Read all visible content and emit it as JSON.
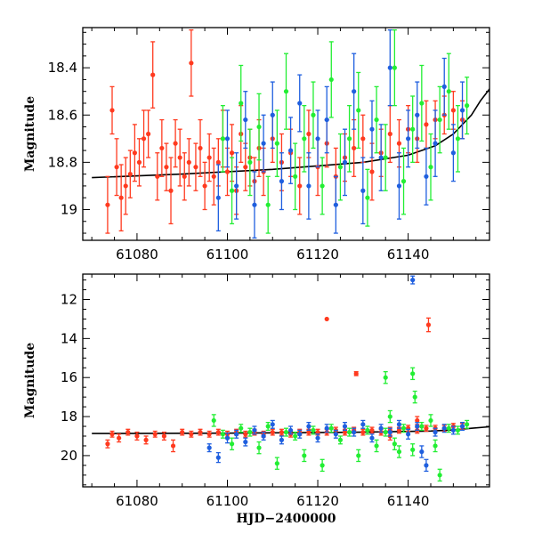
{
  "colors": {
    "red": "#ff3a1f",
    "blue": "#1f5fdf",
    "green": "#22ee33",
    "model": "#000000"
  },
  "chart_data": [
    {
      "type": "scatter",
      "panel": "top",
      "xlabel": "",
      "ylabel": "Magnitude",
      "xlim": [
        61068,
        61158
      ],
      "ylim": [
        19.13,
        18.23
      ],
      "y_inverted": true,
      "xticks": [
        61080,
        61100,
        61120,
        61140
      ],
      "xtick_labels": [
        "61080",
        "61100",
        "61120",
        "61140"
      ],
      "yticks": [
        18.4,
        18.6,
        18.8,
        19.0
      ],
      "ytick_labels": [
        "18.4",
        "18.6",
        "18.8",
        "19"
      ],
      "series": [
        {
          "name": "red",
          "color": "#ff3a1f",
          "x": [
            61073.5,
            61074.5,
            61075.5,
            61076.5,
            61077.5,
            61078.5,
            61079.5,
            61080.5,
            61081.5,
            61082.5,
            61083.5,
            61084.5,
            61085.5,
            61086.5,
            61087.5,
            61088.5,
            61089.5,
            61090.5,
            61091.5,
            61092,
            61093,
            61094,
            61095,
            61096,
            61097,
            61098,
            61099,
            61100,
            61101,
            61102,
            61103,
            61104,
            61105,
            61106,
            61107,
            61108,
            61110,
            61112,
            61114,
            61116,
            61118,
            61120,
            61122,
            61124,
            61126,
            61128,
            61130,
            61132,
            61134,
            61136,
            61138,
            61140,
            61142,
            61144,
            61146,
            61148,
            61150,
            61152
          ],
          "y": [
            18.98,
            18.58,
            18.82,
            18.95,
            18.9,
            18.85,
            18.76,
            18.8,
            18.7,
            18.68,
            18.43,
            18.86,
            18.74,
            18.82,
            18.92,
            18.72,
            18.78,
            18.86,
            18.8,
            18.38,
            18.82,
            18.74,
            18.9,
            18.78,
            18.86,
            18.8,
            18.7,
            18.84,
            18.76,
            18.92,
            18.68,
            18.82,
            18.78,
            18.88,
            18.74,
            18.84,
            18.7,
            18.8,
            18.76,
            18.9,
            18.68,
            18.82,
            18.72,
            18.86,
            18.78,
            18.74,
            18.7,
            18.84,
            18.76,
            18.68,
            18.72,
            18.66,
            18.7,
            18.64,
            18.62,
            18.6,
            18.58,
            18.62
          ],
          "err": [
            0.12,
            0.1,
            0.12,
            0.14,
            0.12,
            0.1,
            0.12,
            0.1,
            0.12,
            0.1,
            0.14,
            0.1,
            0.12,
            0.1,
            0.14,
            0.1,
            0.12,
            0.1,
            0.1,
            0.14,
            0.1,
            0.12,
            0.1,
            0.1,
            0.12,
            0.1,
            0.12,
            0.1,
            0.12,
            0.1,
            0.12,
            0.1,
            0.12,
            0.1,
            0.12,
            0.1,
            0.1,
            0.12,
            0.1,
            0.12,
            0.1,
            0.12,
            0.1,
            0.12,
            0.1,
            0.12,
            0.1,
            0.12,
            0.1,
            0.12,
            0.1,
            0.1,
            0.1,
            0.1,
            0.08,
            0.08,
            0.08,
            0.08
          ]
        },
        {
          "name": "blue",
          "color": "#1f5fdf",
          "x": [
            61098,
            61100,
            61102,
            61104,
            61106,
            61108,
            61110,
            61112,
            61114,
            61116,
            61118,
            61120,
            61122,
            61124,
            61126,
            61128,
            61130,
            61132,
            61134,
            61136,
            61138,
            61140,
            61142,
            61144,
            61146,
            61148,
            61150,
            61152
          ],
          "y": [
            18.95,
            18.7,
            18.9,
            18.62,
            18.98,
            18.72,
            18.6,
            18.88,
            18.75,
            18.55,
            18.9,
            18.7,
            18.62,
            18.98,
            18.8,
            18.5,
            18.92,
            18.66,
            18.78,
            18.4,
            18.9,
            18.7,
            18.6,
            18.86,
            18.72,
            18.48,
            18.76,
            18.58
          ],
          "err": [
            0.14,
            0.12,
            0.14,
            0.12,
            0.14,
            0.12,
            0.14,
            0.12,
            0.14,
            0.12,
            0.14,
            0.12,
            0.14,
            0.12,
            0.14,
            0.16,
            0.14,
            0.12,
            0.14,
            0.16,
            0.14,
            0.12,
            0.14,
            0.12,
            0.14,
            0.12,
            0.12,
            0.12
          ]
        },
        {
          "name": "green",
          "color": "#22ee33",
          "x": [
            61099,
            61101,
            61103,
            61105,
            61107,
            61109,
            61111,
            61113,
            61115,
            61117,
            61119,
            61121,
            61123,
            61125,
            61127,
            61129,
            61131,
            61133,
            61135,
            61137,
            61139,
            61141,
            61143,
            61145,
            61147,
            61149,
            61151,
            61153
          ],
          "y": [
            18.7,
            18.92,
            18.55,
            18.8,
            18.65,
            18.98,
            18.72,
            18.5,
            18.86,
            18.7,
            18.6,
            18.9,
            18.45,
            18.82,
            18.7,
            18.58,
            18.95,
            18.62,
            18.78,
            18.4,
            18.88,
            18.66,
            18.55,
            18.82,
            18.62,
            18.5,
            18.7,
            18.56
          ],
          "err": [
            0.14,
            0.14,
            0.16,
            0.14,
            0.14,
            0.12,
            0.14,
            0.16,
            0.14,
            0.14,
            0.14,
            0.12,
            0.16,
            0.14,
            0.14,
            0.16,
            0.12,
            0.14,
            0.14,
            0.16,
            0.14,
            0.14,
            0.16,
            0.14,
            0.14,
            0.16,
            0.14,
            0.12
          ]
        }
      ],
      "model": {
        "x": [
          61070,
          61090,
          61110,
          61130,
          61140,
          61146,
          61150,
          61154,
          61156,
          61158
        ],
        "y": [
          18.865,
          18.85,
          18.83,
          18.8,
          18.77,
          18.73,
          18.68,
          18.6,
          18.54,
          18.49
        ]
      }
    },
    {
      "type": "scatter",
      "panel": "bottom",
      "xlabel": "HJD−2400000",
      "ylabel": "Magnitude",
      "xlim": [
        61068,
        61158
      ],
      "ylim": [
        21.6,
        10.7
      ],
      "y_inverted": true,
      "xticks": [
        61080,
        61100,
        61120,
        61140
      ],
      "xtick_labels": [
        "61080",
        "61100",
        "61120",
        "61140"
      ],
      "yticks": [
        12,
        14,
        16,
        18,
        20
      ],
      "ytick_labels": [
        "12",
        "14",
        "16",
        "18",
        "20"
      ],
      "series": [
        {
          "name": "red",
          "color": "#ff3a1f",
          "x": [
            61073.5,
            61074.5,
            61076,
            61078,
            61080,
            61082,
            61084,
            61086,
            61088,
            61090,
            61092,
            61094,
            61096,
            61098,
            61100,
            61102,
            61104,
            61106,
            61108,
            61110,
            61112,
            61114,
            61116,
            61118,
            61120,
            61122,
            61124,
            61126,
            61128,
            61130,
            61132,
            61134,
            61136,
            61138,
            61140,
            61142,
            61144,
            61146,
            61148,
            61150,
            61152,
            61122,
            61128.5,
            61144.5,
            61136,
            61142
          ],
          "y": [
            19.4,
            18.9,
            19.1,
            18.8,
            19.0,
            19.2,
            18.9,
            19.0,
            19.5,
            18.8,
            18.9,
            18.8,
            18.9,
            18.8,
            18.9,
            18.8,
            18.9,
            18.8,
            18.9,
            18.8,
            18.8,
            18.9,
            18.8,
            18.8,
            18.8,
            18.8,
            18.7,
            18.8,
            18.7,
            18.8,
            18.7,
            18.8,
            18.7,
            18.7,
            18.6,
            18.7,
            18.6,
            18.6,
            18.6,
            18.5,
            18.5,
            13.0,
            15.8,
            13.3,
            19.0,
            18.2
          ],
          "err": [
            0.2,
            0.15,
            0.2,
            0.15,
            0.2,
            0.2,
            0.15,
            0.2,
            0.3,
            0.15,
            0.15,
            0.15,
            0.15,
            0.15,
            0.15,
            0.15,
            0.15,
            0.15,
            0.15,
            0.15,
            0.15,
            0.15,
            0.15,
            0.15,
            0.15,
            0.15,
            0.15,
            0.15,
            0.15,
            0.15,
            0.15,
            0.15,
            0.15,
            0.15,
            0.15,
            0.15,
            0.15,
            0.15,
            0.15,
            0.15,
            0.15,
            0.0,
            0.1,
            0.35,
            0.2,
            0.2
          ]
        },
        {
          "name": "blue",
          "color": "#1f5fdf",
          "x": [
            61096,
            61098,
            61100,
            61102,
            61104,
            61106,
            61108,
            61110,
            61112,
            61114,
            61116,
            61118,
            61120,
            61122,
            61124,
            61126,
            61128,
            61130,
            61132,
            61134,
            61136,
            61138,
            61140,
            61142,
            61144,
            61146,
            61148,
            61150,
            61152,
            61141,
            61143
          ],
          "y": [
            19.6,
            20.1,
            19.1,
            18.9,
            19.3,
            18.7,
            19.0,
            18.4,
            19.2,
            18.7,
            18.9,
            18.5,
            19.1,
            18.6,
            18.9,
            18.5,
            18.8,
            18.4,
            19.1,
            18.6,
            18.8,
            18.4,
            18.9,
            18.5,
            20.5,
            18.8,
            18.6,
            18.7,
            18.5,
            11.0,
            19.8
          ],
          "err": [
            0.2,
            0.25,
            0.25,
            0.2,
            0.2,
            0.2,
            0.2,
            0.2,
            0.2,
            0.2,
            0.2,
            0.2,
            0.2,
            0.2,
            0.2,
            0.2,
            0.2,
            0.2,
            0.2,
            0.2,
            0.2,
            0.2,
            0.25,
            0.2,
            0.3,
            0.2,
            0.2,
            0.2,
            0.2,
            0.2,
            0.3
          ]
        },
        {
          "name": "green",
          "color": "#22ee33",
          "x": [
            61097,
            61099,
            61101,
            61103,
            61105,
            61107,
            61109,
            61111,
            61113,
            61115,
            61117,
            61119,
            61121,
            61123,
            61125,
            61127,
            61129,
            61131,
            61133,
            61135,
            61137,
            61139,
            61141,
            61143,
            61145,
            61147,
            61149,
            61151,
            61153,
            61135,
            61141,
            61141.5,
            61138,
            61136,
            61146
          ],
          "y": [
            18.2,
            18.9,
            19.4,
            18.6,
            18.8,
            19.6,
            18.5,
            20.4,
            18.8,
            19.0,
            20.0,
            18.7,
            20.5,
            18.6,
            19.2,
            18.8,
            20.0,
            18.7,
            19.5,
            18.8,
            19.4,
            18.6,
            19.7,
            18.5,
            18.2,
            21.0,
            18.6,
            18.7,
            18.4,
            16.0,
            15.8,
            17.0,
            19.8,
            18.0,
            19.5
          ],
          "err": [
            0.3,
            0.2,
            0.3,
            0.2,
            0.2,
            0.3,
            0.2,
            0.3,
            0.2,
            0.2,
            0.3,
            0.2,
            0.3,
            0.2,
            0.2,
            0.2,
            0.3,
            0.2,
            0.3,
            0.2,
            0.3,
            0.2,
            0.3,
            0.2,
            0.3,
            0.3,
            0.2,
            0.2,
            0.2,
            0.3,
            0.3,
            0.3,
            0.3,
            0.3,
            0.3
          ]
        }
      ],
      "model": {
        "x": [
          61070,
          61100,
          61130,
          61145,
          61150,
          61154,
          61158
        ],
        "y": [
          18.87,
          18.85,
          18.8,
          18.74,
          18.68,
          18.6,
          18.52
        ]
      }
    }
  ]
}
